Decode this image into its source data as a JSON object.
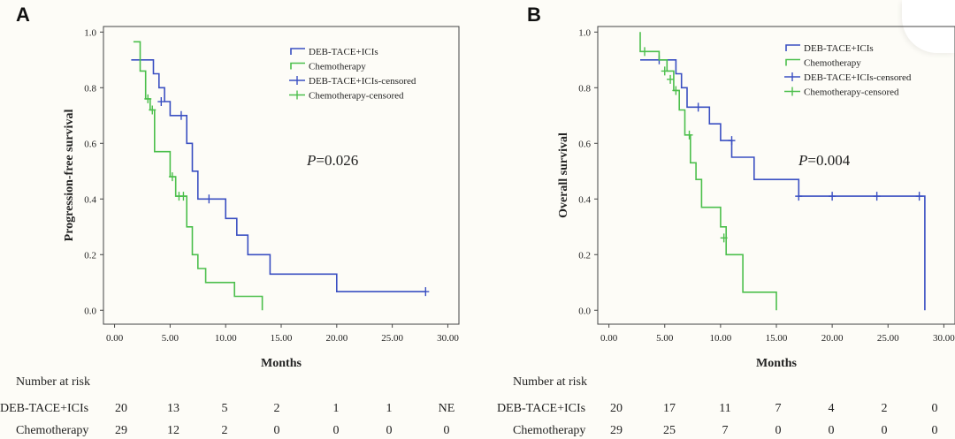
{
  "chart_data": [
    {
      "panel": "A",
      "type": "line",
      "step": true,
      "ylabel": "Progression-free survival",
      "xlabel": "Months",
      "xticks": [
        "0.00",
        "5.00",
        "10.00",
        "15.00",
        "20.00",
        "25.00",
        "30.00"
      ],
      "yticks": [
        "0.0",
        "0.2",
        "0.4",
        "0.6",
        "0.8",
        "1.0"
      ],
      "xlim": [
        -1,
        31
      ],
      "ylim": [
        -0.05,
        1.02
      ],
      "p_value": "=0.026",
      "p_label": "P",
      "legend": [
        "DEB-TACE+ICIs",
        "Chemotherapy",
        "DEB-TACE+ICIs-censored",
        "Chemotherapy-censored"
      ],
      "series": [
        {
          "name": "DEB-TACE+ICIs",
          "color": "#3a4fc2",
          "points": [
            [
              1.5,
              0.9
            ],
            [
              3.5,
              0.9
            ],
            [
              3.5,
              0.85
            ],
            [
              4,
              0.85
            ],
            [
              4,
              0.8
            ],
            [
              4.5,
              0.8
            ],
            [
              4.5,
              0.75
            ],
            [
              5,
              0.75
            ],
            [
              5,
              0.7
            ],
            [
              6.5,
              0.7
            ],
            [
              6.5,
              0.6
            ],
            [
              7,
              0.6
            ],
            [
              7,
              0.5
            ],
            [
              7.5,
              0.5
            ],
            [
              7.5,
              0.4
            ],
            [
              10,
              0.4
            ],
            [
              10,
              0.33
            ],
            [
              11,
              0.33
            ],
            [
              11,
              0.27
            ],
            [
              12,
              0.27
            ],
            [
              12,
              0.2
            ],
            [
              14,
              0.2
            ],
            [
              14,
              0.13
            ],
            [
              20,
              0.13
            ],
            [
              20,
              0.067
            ],
            [
              28,
              0.067
            ]
          ],
          "censored": [
            [
              4.2,
              0.75
            ],
            [
              6,
              0.7
            ],
            [
              8.5,
              0.4
            ],
            [
              28,
              0.067
            ]
          ]
        },
        {
          "name": "Chemotherapy",
          "color": "#4cbf4c",
          "points": [
            [
              1.7,
              0.965
            ],
            [
              2.3,
              0.965
            ],
            [
              2.3,
              0.86
            ],
            [
              2.8,
              0.86
            ],
            [
              2.8,
              0.76
            ],
            [
              3.2,
              0.76
            ],
            [
              3.2,
              0.72
            ],
            [
              3.6,
              0.72
            ],
            [
              3.6,
              0.57
            ],
            [
              5,
              0.57
            ],
            [
              5,
              0.48
            ],
            [
              5.5,
              0.48
            ],
            [
              5.5,
              0.41
            ],
            [
              6.5,
              0.41
            ],
            [
              6.5,
              0.3
            ],
            [
              7,
              0.3
            ],
            [
              7,
              0.2
            ],
            [
              7.5,
              0.2
            ],
            [
              7.5,
              0.15
            ],
            [
              8.2,
              0.15
            ],
            [
              8.2,
              0.1
            ],
            [
              10.8,
              0.1
            ],
            [
              10.8,
              0.05
            ],
            [
              13.3,
              0.05
            ],
            [
              13.3,
              0.0
            ]
          ],
          "censored": [
            [
              3,
              0.76
            ],
            [
              3.4,
              0.72
            ],
            [
              5.2,
              0.48
            ],
            [
              5.8,
              0.41
            ],
            [
              6.2,
              0.41
            ]
          ]
        }
      ],
      "risk_table": {
        "header": "Number at risk",
        "rows": [
          {
            "label": "DEB-TACE+ICIs",
            "values": [
              "20",
              "13",
              "5",
              "2",
              "1",
              "1",
              "NE"
            ]
          },
          {
            "label": "Chemotherapy",
            "values": [
              "29",
              "12",
              "2",
              "0",
              "0",
              "0",
              "0"
            ]
          }
        ]
      }
    },
    {
      "panel": "B",
      "type": "line",
      "step": true,
      "ylabel": "Overall survival",
      "xlabel": "Months",
      "xticks": [
        "0.00",
        "5.00",
        "10.00",
        "15.00",
        "20.00",
        "25.00",
        "30.00"
      ],
      "yticks": [
        "0.0",
        "0.2",
        "0.4",
        "0.6",
        "0.8",
        "1.0"
      ],
      "xlim": [
        -1,
        31
      ],
      "ylim": [
        -0.05,
        1.02
      ],
      "p_value": "=0.004",
      "p_label": "P",
      "legend": [
        "DEB-TACE+ICIs",
        "Chemotherapy",
        "DEB-TACE+ICIs-censored",
        "Chemotherapy-censored"
      ],
      "series": [
        {
          "name": "DEB-TACE+ICIs",
          "color": "#3a4fc2",
          "points": [
            [
              2.8,
              0.9
            ],
            [
              6,
              0.9
            ],
            [
              6,
              0.85
            ],
            [
              6.5,
              0.85
            ],
            [
              6.5,
              0.8
            ],
            [
              7,
              0.8
            ],
            [
              7,
              0.73
            ],
            [
              9,
              0.73
            ],
            [
              9,
              0.67
            ],
            [
              10,
              0.67
            ],
            [
              10,
              0.61
            ],
            [
              11,
              0.61
            ],
            [
              11,
              0.55
            ],
            [
              13,
              0.55
            ],
            [
              13,
              0.47
            ],
            [
              17,
              0.47
            ],
            [
              17,
              0.41
            ],
            [
              28.3,
              0.41
            ],
            [
              28.3,
              0.0
            ]
          ],
          "censored": [
            [
              4.5,
              0.9
            ],
            [
              8,
              0.73
            ],
            [
              11,
              0.61
            ],
            [
              17,
              0.41
            ],
            [
              20,
              0.41
            ],
            [
              24,
              0.41
            ],
            [
              27.8,
              0.41
            ]
          ]
        },
        {
          "name": "Chemotherapy",
          "color": "#4cbf4c",
          "points": [
            [
              2.8,
              1.0
            ],
            [
              2.8,
              0.93
            ],
            [
              4.5,
              0.93
            ],
            [
              4.5,
              0.9
            ],
            [
              5.2,
              0.9
            ],
            [
              5.2,
              0.86
            ],
            [
              5.8,
              0.86
            ],
            [
              5.8,
              0.79
            ],
            [
              6.3,
              0.79
            ],
            [
              6.3,
              0.72
            ],
            [
              6.8,
              0.72
            ],
            [
              6.8,
              0.63
            ],
            [
              7.3,
              0.63
            ],
            [
              7.3,
              0.53
            ],
            [
              7.8,
              0.53
            ],
            [
              7.8,
              0.47
            ],
            [
              8.3,
              0.47
            ],
            [
              8.3,
              0.37
            ],
            [
              10,
              0.37
            ],
            [
              10,
              0.3
            ],
            [
              10.5,
              0.3
            ],
            [
              10.5,
              0.2
            ],
            [
              12,
              0.2
            ],
            [
              12,
              0.065
            ],
            [
              15,
              0.065
            ],
            [
              15,
              0.0
            ]
          ],
          "censored": [
            [
              3.2,
              0.93
            ],
            [
              5,
              0.86
            ],
            [
              5.5,
              0.83
            ],
            [
              6,
              0.79
            ],
            [
              7.2,
              0.63
            ],
            [
              10.3,
              0.26
            ]
          ]
        }
      ],
      "risk_table": {
        "header": "Number at risk",
        "rows": [
          {
            "label": "DEB-TACE+ICIs",
            "values": [
              "20",
              "17",
              "11",
              "7",
              "4",
              "2",
              "0"
            ]
          },
          {
            "label": "Chemotherapy",
            "values": [
              "29",
              "25",
              "7",
              "0",
              "0",
              "0",
              "0"
            ]
          }
        ]
      }
    }
  ]
}
